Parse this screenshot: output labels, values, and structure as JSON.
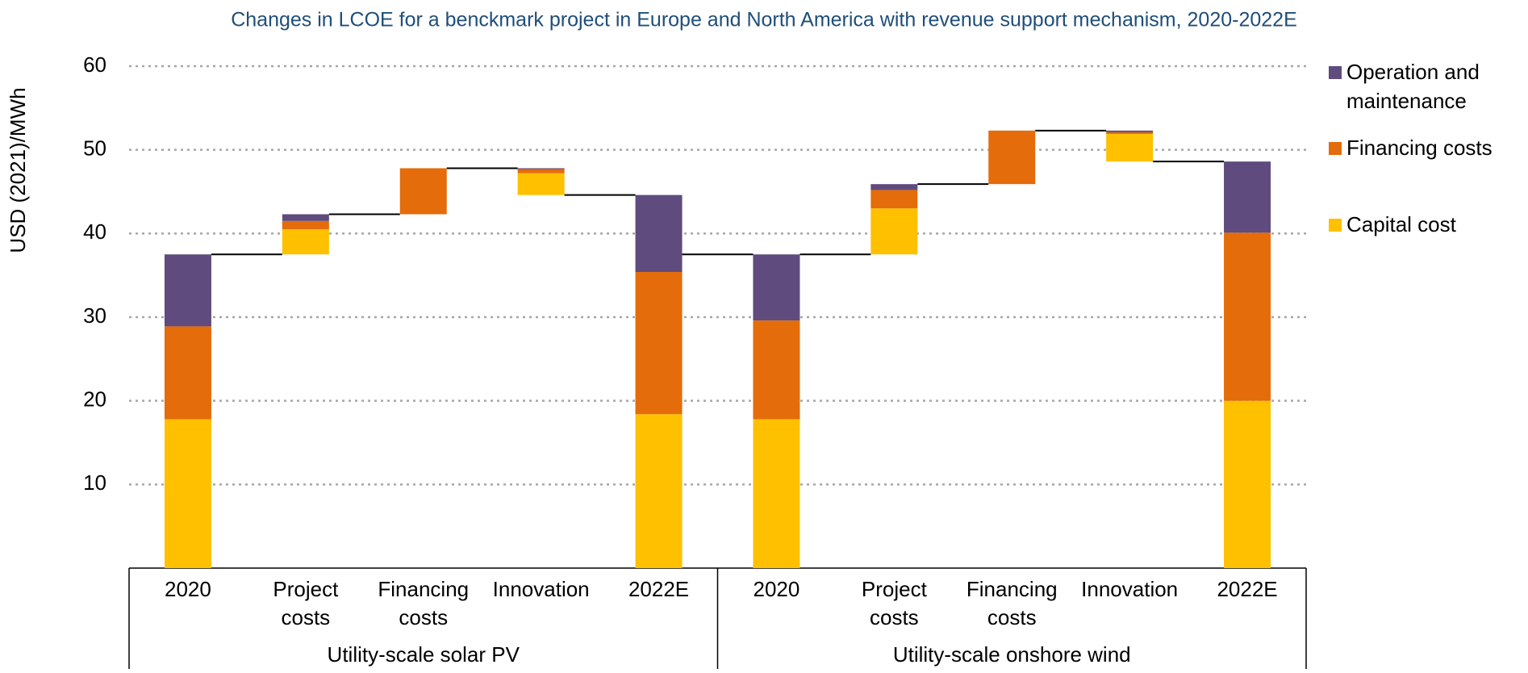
{
  "chart_data": {
    "type": "waterfall",
    "title": "Changes in LCOE for a benckmark project in Europe and North America with revenue support mechanism, 2020-2022E",
    "y_label": "USD (2021)/MWh",
    "groups": [
      {
        "name": "Utility-scale solar PV",
        "categories": [
          "2020",
          "Project costs",
          "Financing costs",
          "Innovation",
          "2022E"
        ]
      },
      {
        "name": "Utility-scale onshore wind",
        "categories": [
          "2020",
          "Project costs",
          "Financing costs",
          "Innovation",
          "2022E"
        ]
      }
    ],
    "measure": [
      "absolute",
      "relative",
      "relative",
      "relative",
      "absolute",
      "absolute",
      "relative",
      "relative",
      "relative",
      "absolute"
    ],
    "series": [
      {
        "name": "Capital cost",
        "color": "#ffc000",
        "values": [
          17.8,
          3.0,
          0,
          -2.6,
          18.4,
          17.8,
          5.5,
          0,
          -3.3,
          20.0
        ]
      },
      {
        "name": "Financing costs",
        "color": "#e46c0a",
        "values": [
          11.1,
          1.0,
          5.5,
          -0.5,
          17.0,
          11.8,
          2.2,
          6.4,
          -0.2,
          20.1
        ]
      },
      {
        "name": "Operation and maintenance",
        "color": "#5f4b7d",
        "values": [
          8.6,
          0.8,
          0,
          -0.1,
          9.2,
          7.9,
          0.7,
          0,
          -0.2,
          8.5
        ]
      }
    ],
    "ylim": [
      0,
      60
    ],
    "yticks": [
      10,
      20,
      30,
      40,
      50,
      60
    ],
    "grid": true,
    "legend": "right"
  }
}
